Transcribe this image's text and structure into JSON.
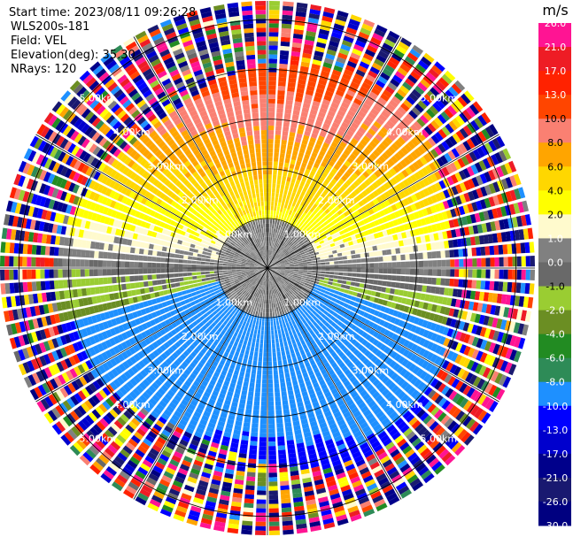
{
  "header": {
    "start_time": "Start time: 2023/08/11 09:26:28",
    "instrument": "WLS200s-181",
    "field": "Field: VEL",
    "elevation": "Elevation(deg): 35.30",
    "nrays": "NRays: 120"
  },
  "chart_data": {
    "type": "heatmap",
    "subtype": "ppi-polar",
    "field": "VEL",
    "nrays": 120,
    "range_rings_km": [
      1.0,
      2.0,
      3.0,
      4.0,
      5.0
    ],
    "range_ring_labels": [
      "1.00km",
      "2.00km",
      "3.00km",
      "4.00km",
      "5.00km"
    ],
    "max_range_km": 5.0,
    "radial_lines": 12,
    "colorbar": {
      "unit": "m/s",
      "tick_labels": [
        "26.0",
        "21.0",
        "17.0",
        "13.0",
        "10.0",
        "8.0",
        "6.0",
        "4.0",
        "2.0",
        "1.0",
        "0.0",
        "-1.0",
        "-2.0",
        "-4.0",
        "-6.0",
        "-8.0",
        "-10.0",
        "-13.0",
        "-17.0",
        "-21.0",
        "-26.0",
        "-30.0"
      ],
      "colors": [
        "#ff1493",
        "#ee1c25",
        "#ff2200",
        "#ff4500",
        "#fa8072",
        "#ffa500",
        "#ffd700",
        "#ffff00",
        "#fffacd",
        "#808080",
        "#696969",
        "#9acd32",
        "#6b8e23",
        "#228b22",
        "#2e8b57",
        "#1e90ff",
        "#0000ff",
        "#0000cd",
        "#00008b",
        "#191970",
        "#000080"
      ]
    }
  }
}
